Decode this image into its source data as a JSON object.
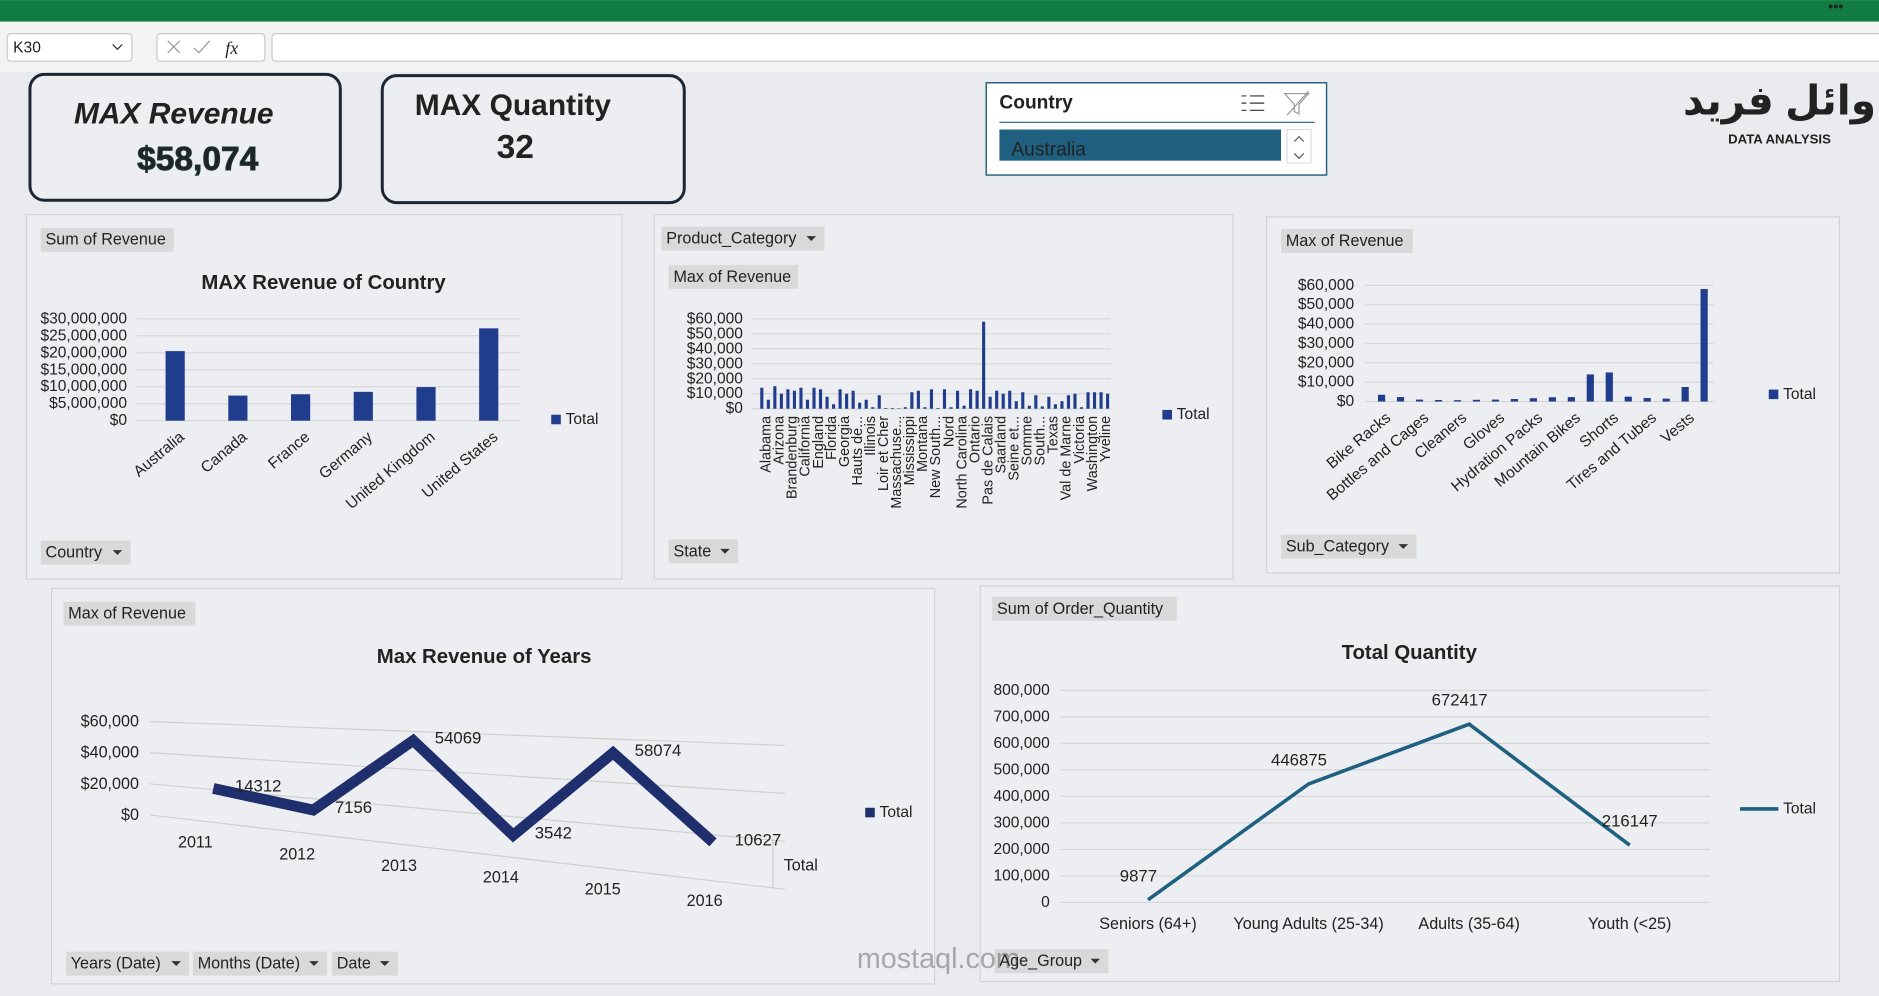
{
  "app": {
    "name_box": "K30",
    "formula_icon": "fx"
  },
  "kpis": [
    {
      "label": "MAX Revenue",
      "value": "$58,074"
    },
    {
      "label": "MAX Quantity",
      "value": "32"
    }
  ],
  "slicer": {
    "title": "Country",
    "items": [
      "Australia"
    ]
  },
  "logo": {
    "text": "وائل فريد",
    "subtitle": "DATA ANALYSIS"
  },
  "watermark": "mostaql.com",
  "chart_data": [
    {
      "type": "bar",
      "title": "MAX Revenue of Country",
      "field_buttons": [
        "Sum of Revenue",
        "Country"
      ],
      "categories": [
        "Australia",
        "Canada",
        "France",
        "Germany",
        "United Kingdom",
        "United States"
      ],
      "series": [
        {
          "name": "Total",
          "color": "#203c8c",
          "values": [
            20500000,
            7400000,
            7800000,
            8500000,
            9900000,
            27200000
          ]
        }
      ],
      "ylim": [
        0,
        30000000
      ],
      "yticks": [
        {
          "value": 0,
          "label": "$0"
        },
        {
          "value": 5000000,
          "label": "$5,000,000"
        },
        {
          "value": 10000000,
          "label": "$10,000,000"
        },
        {
          "value": 15000000,
          "label": "$15,000,000"
        },
        {
          "value": 20000000,
          "label": "$20,000,000"
        },
        {
          "value": 25000000,
          "label": "$25,000,000"
        },
        {
          "value": 30000000,
          "label": "$30,000,000"
        }
      ],
      "grid": true,
      "legend": "right"
    },
    {
      "type": "bar",
      "field_buttons": [
        "Product_Category",
        "Max of Revenue",
        "State"
      ],
      "categories": [
        "Alabama",
        null,
        "Arizona",
        null,
        "Brandenburg",
        null,
        "California",
        null,
        "England",
        null,
        "Florida",
        null,
        "Georgia",
        null,
        "Hauts de...",
        null,
        "Illinois",
        null,
        "Loir et Cher",
        null,
        "Massachuse...",
        null,
        "Mississippi",
        null,
        "Montana",
        null,
        "New South...",
        null,
        "Nord",
        null,
        "North Carolina",
        null,
        "Ontario",
        null,
        "Pas de Calais",
        null,
        "Saarland",
        null,
        "Seine et...",
        null,
        "Somme",
        null,
        "South...",
        null,
        "Texas",
        null,
        "Val de Marne",
        null,
        "Victoria",
        null,
        "Washington",
        null,
        "Yveline",
        null
      ],
      "series": [
        {
          "name": "Total",
          "color": "#203c8c",
          "values": [
            14000,
            6000,
            15000,
            10000,
            13000,
            12000,
            14000,
            6000,
            14000,
            13000,
            8000,
            3000,
            13000,
            10000,
            12000,
            4000,
            6000,
            1000,
            9000,
            500,
            500,
            300,
            1000,
            11000,
            12000,
            1000,
            13000,
            500,
            13000,
            1000,
            12000,
            2000,
            13000,
            12000,
            58074,
            8000,
            12000,
            10000,
            12000,
            5000,
            11000,
            2000,
            9000,
            1500,
            8000,
            3000,
            5000,
            9000,
            10000,
            1000,
            11000,
            11000,
            11000,
            10000
          ]
        }
      ],
      "ylim": [
        0,
        60000
      ],
      "yticks": [
        {
          "value": 0,
          "label": "$0"
        },
        {
          "value": 10000,
          "label": "$10,000"
        },
        {
          "value": 20000,
          "label": "$20,000"
        },
        {
          "value": 30000,
          "label": "$30,000"
        },
        {
          "value": 40000,
          "label": "$40,000"
        },
        {
          "value": 50000,
          "label": "$50,000"
        },
        {
          "value": 60000,
          "label": "$60,000"
        }
      ],
      "grid": true,
      "legend": "right"
    },
    {
      "type": "bar",
      "field_buttons": [
        "Max of Revenue",
        "Sub_Category"
      ],
      "categories": [
        "Bike Racks",
        null,
        "Bottles and Cages",
        null,
        "Cleaners",
        null,
        "Gloves",
        null,
        "Hydration Packs",
        null,
        "Mountain Bikes",
        null,
        "Shorts",
        null,
        "Tires and Tubes",
        null,
        "Vests",
        null
      ],
      "series": [
        {
          "name": "Total",
          "color": "#203c8c",
          "values": [
            3500,
            2300,
            1000,
            800,
            700,
            900,
            1000,
            1300,
            1700,
            2200,
            2300,
            14000,
            15000,
            2500,
            1800,
            1500,
            7500,
            58074
          ]
        }
      ],
      "ylim": [
        0,
        60000
      ],
      "yticks": [
        {
          "value": 0,
          "label": "$0"
        },
        {
          "value": 10000,
          "label": "$10,000"
        },
        {
          "value": 20000,
          "label": "$20,000"
        },
        {
          "value": 30000,
          "label": "$30,000"
        },
        {
          "value": 40000,
          "label": "$40,000"
        },
        {
          "value": 50000,
          "label": "$50,000"
        },
        {
          "value": 60000,
          "label": "$60,000"
        }
      ],
      "grid": true,
      "legend": "right"
    },
    {
      "type": "line",
      "three_d": true,
      "title": "Max Revenue of Years",
      "field_buttons": [
        "Max of Revenue",
        "Years (Date)",
        "Months (Date)",
        "Date"
      ],
      "categories": [
        "2011",
        "2012",
        "2013",
        "2014",
        "2015",
        "2016"
      ],
      "series": [
        {
          "name": "Total",
          "color": "#1f2f6e",
          "values": [
            14312,
            7156,
            54069,
            3542,
            58074,
            10627
          ]
        }
      ],
      "ylim": [
        0,
        60000
      ],
      "yticks": [
        {
          "value": 0,
          "label": "$0"
        },
        {
          "value": 20000,
          "label": "$20,000"
        },
        {
          "value": 40000,
          "label": "$40,000"
        },
        {
          "value": 60000,
          "label": "$60,000"
        }
      ],
      "z_axis_label": "Total",
      "data_labels": true,
      "grid": true,
      "legend": "right"
    },
    {
      "type": "line",
      "title": "Total Quantity",
      "field_buttons": [
        "Sum of Order_Quantity",
        "Age_Group"
      ],
      "categories": [
        "Seniors (64+)",
        "Young Adults (25-34)",
        "Adults (35-64)",
        "Youth (<25)"
      ],
      "series": [
        {
          "name": "Total",
          "color": "#1f6080",
          "values": [
            9877,
            446875,
            672417,
            216147
          ]
        }
      ],
      "ylim": [
        0,
        800000
      ],
      "yticks": [
        0,
        {
          "value": 100000,
          "label": "100,000"
        },
        {
          "value": 200000,
          "label": "200,000"
        },
        {
          "value": 300000,
          "label": "300,000"
        },
        {
          "value": 400000,
          "label": "400,000"
        },
        {
          "value": 500000,
          "label": "500,000"
        },
        {
          "value": 600000,
          "label": "600,000"
        },
        {
          "value": 700000,
          "label": "700,000"
        },
        {
          "value": 800000,
          "label": "800,000"
        }
      ],
      "data_labels": true,
      "grid": true,
      "legend": "right"
    }
  ]
}
